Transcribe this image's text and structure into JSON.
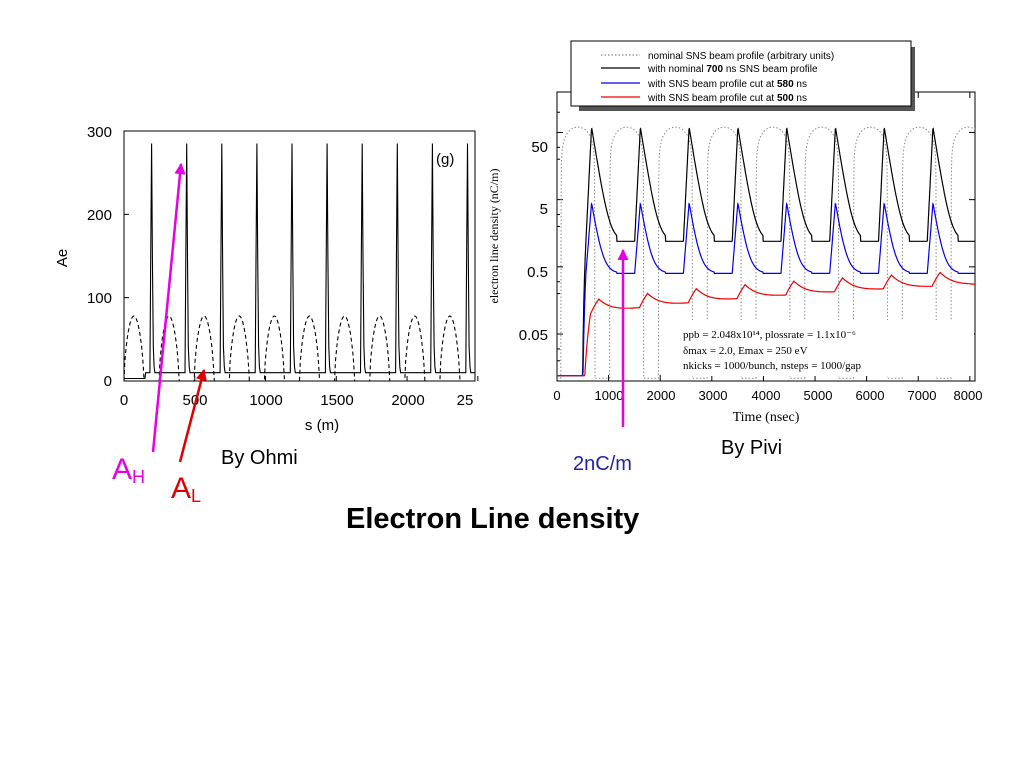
{
  "slide_title": "Electron Line density",
  "annotations": {
    "by_ohmi": "By Ohmi",
    "by_pivi": "By Pivi",
    "ah_main": "A",
    "ah_sub": "H",
    "al_main": "A",
    "al_sub": "L",
    "two_nc_m": "2nC/m",
    "colors": {
      "ah": "#e600e6",
      "al": "#e00000",
      "two_nc_m": "#2222aa"
    }
  },
  "chart_data": [
    {
      "type": "line",
      "panel_tag": "(g)",
      "xlabel": "s (m)",
      "ylabel": "Ae",
      "xlim": [
        0,
        2500
      ],
      "ylim": [
        0,
        300
      ],
      "x_ticks": [
        "0",
        "500",
        "1000",
        "1500",
        "2000",
        "25"
      ],
      "y_ticks": [
        "0",
        "100",
        "200",
        "300"
      ],
      "bunch_spacing_m": 248,
      "series": [
        {
          "style": "solid",
          "peak_value": 285,
          "floor_value": 10,
          "first_peak_s": 192
        },
        {
          "style": "dashed",
          "peak_value": 78,
          "floor_value": 0,
          "first_bump_center_s": 70
        }
      ]
    },
    {
      "type": "line",
      "xlabel": "Time (nsec)",
      "ylabel": "electron line density (nC/m)",
      "xlim": [
        0,
        8000
      ],
      "ylim": [
        0.01,
        200
      ],
      "y_scale": "log",
      "x_ticks": [
        "0",
        "1000",
        "2000",
        "3000",
        "4000",
        "5000",
        "6000",
        "7000",
        "8000"
      ],
      "y_ticks": [
        "0.05",
        "0.5",
        "5",
        "50"
      ],
      "legend": {
        "position": "top",
        "entries": [
          {
            "prefix": "nominal SNS beam profile  (arbitrary units)",
            "bold": "",
            "suffix": "",
            "color": "#888888",
            "style": "dotted"
          },
          {
            "prefix": "with nominal ",
            "bold": "700",
            "suffix": " ns SNS beam profile",
            "color": "#000000",
            "style": "solid"
          },
          {
            "prefix": "with SNS beam profile cut at ",
            "bold": "580",
            "suffix": " ns",
            "color": "#0000ee",
            "style": "solid"
          },
          {
            "prefix": "with SNS beam profile cut at ",
            "bold": "500",
            "suffix": " ns",
            "color": "#ee0000",
            "style": "solid"
          }
        ]
      },
      "parameters": {
        "line1": "ppb = 2.048x10¹⁴, plossrate = 1.1x10⁻⁶",
        "line2": "δmax = 2.0, Emax = 250 eV",
        "line3": "nkicks = 1000/bunch, nsteps = 1000/gap"
      },
      "bunch_period_ns": 945,
      "series": [
        {
          "name": "nominal SNS beam profile (arbitrary units)",
          "color": "#888888",
          "style": "dotted",
          "level": 60
        },
        {
          "name": "with nominal 700 ns SNS beam profile",
          "color": "#000000",
          "peak": 60,
          "floor": 1.2
        },
        {
          "name": "with SNS beam profile cut at 580 ns",
          "color": "#0000ee",
          "peak": 4.5,
          "floor": 0.4
        },
        {
          "name": "with SNS beam profile cut at 500 ns",
          "color": "#ee0000",
          "start": 0.1,
          "end": 0.27
        }
      ]
    }
  ]
}
